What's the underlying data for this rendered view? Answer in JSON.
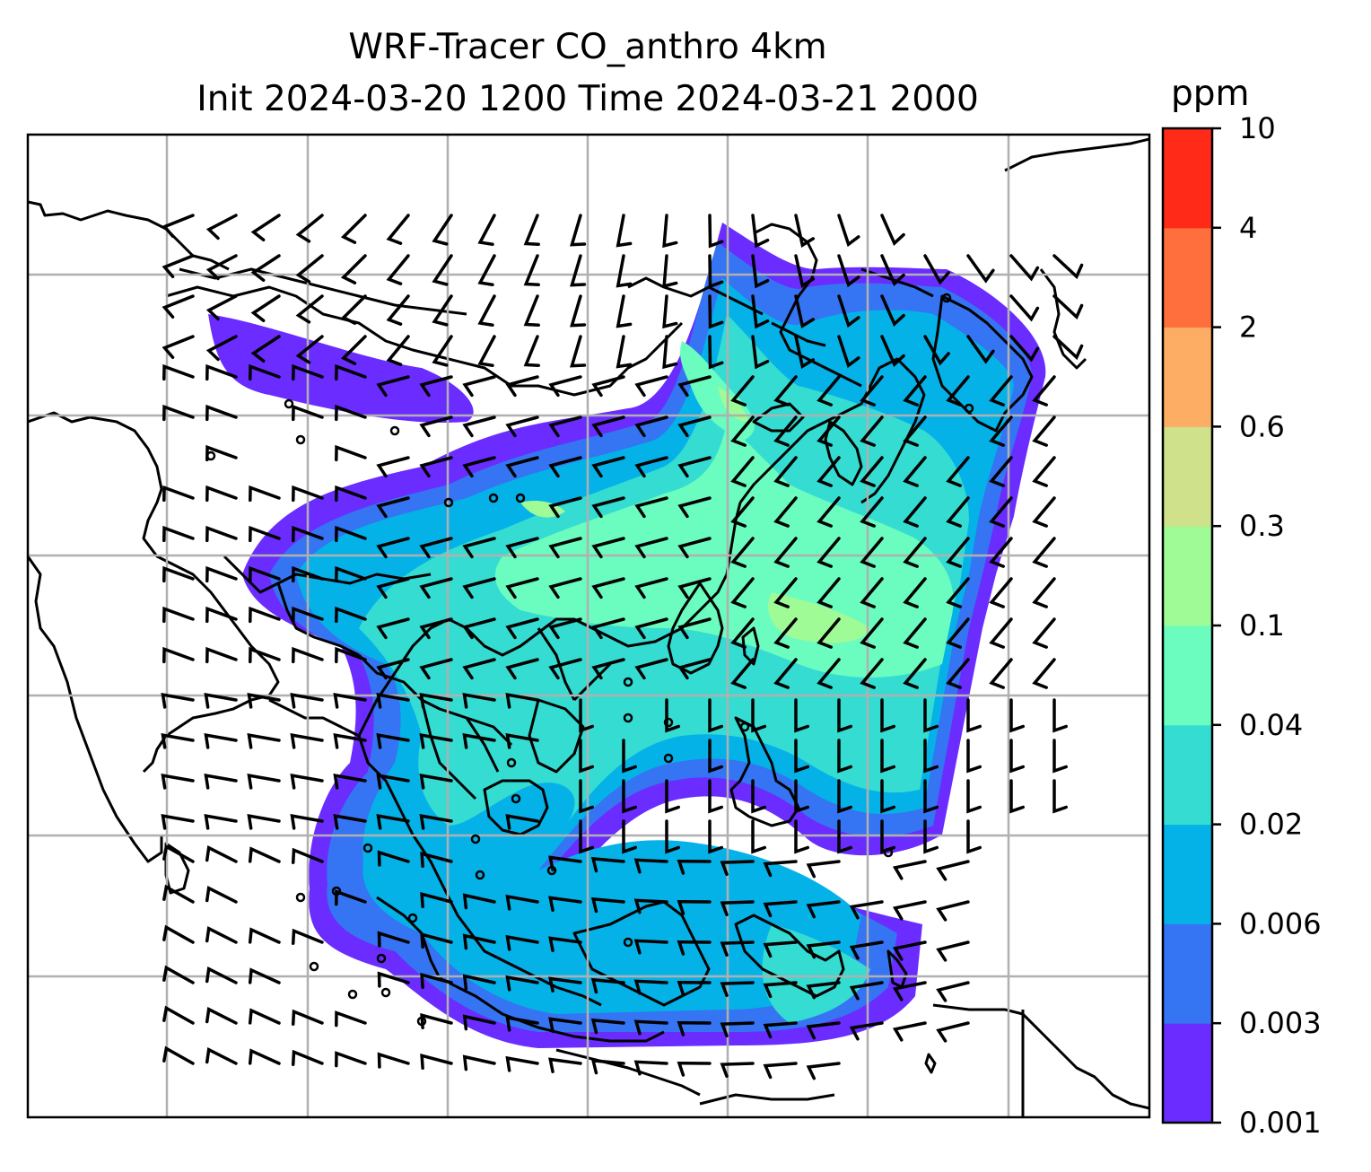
{
  "title": {
    "line1": "WRF-Tracer CO_anthro 4km",
    "line2": "Init 2024-03-20 1200 Time 2024-03-21 2000"
  },
  "map": {
    "variable": "CO_anthro",
    "grid": true,
    "overlays": [
      "coastlines",
      "country-borders",
      "wind-barbs"
    ]
  },
  "colorbar": {
    "unit": "ppm",
    "levels": [
      "0.001",
      "0.003",
      "0.006",
      "0.02",
      "0.04",
      "0.1",
      "0.3",
      "0.6",
      "2",
      "4",
      "10"
    ],
    "colors": [
      "#6a2cff",
      "#3574f2",
      "#04b2e8",
      "#34dcd2",
      "#6bfcbf",
      "#9efb96",
      "#cfe18a",
      "#feae64",
      "#fe6f3d",
      "#ff2a18"
    ]
  }
}
